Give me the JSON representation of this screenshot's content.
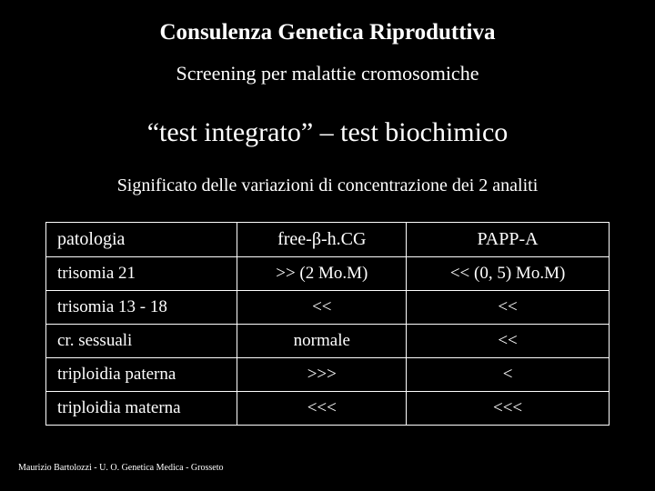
{
  "title": {
    "text": "Consulenza Genetica Riproduttiva",
    "fontsize": 25
  },
  "subtitle1": {
    "text": "Screening per malattie cromosomiche",
    "fontsize": 22
  },
  "subtitle2": {
    "text": "“test integrato” – test  biochimico",
    "fontsize": 30
  },
  "subtitle3": {
    "text": "Significato delle variazioni di concentrazione dei 2 analiti",
    "fontsize": 20
  },
  "table": {
    "columns": [
      "patologia",
      "free-β-h.CG",
      "PAPP-A"
    ],
    "col_widths": [
      "34%",
      "30%",
      "36%"
    ],
    "header_fontsize": 20,
    "cell_fontsize": 19,
    "border_color": "#ffffff",
    "rows": [
      [
        "trisomia 21",
        ">> (2 Mo.M)",
        "<< (0, 5) Mo.M)"
      ],
      [
        "trisomia 13 - 18",
        "<<",
        "<<"
      ],
      [
        "cr. sessuali",
        "normale",
        "<<"
      ],
      [
        "triploidia paterna",
        ">>>",
        "<"
      ],
      [
        "triploidia materna",
        "<<<",
        "<<<"
      ]
    ]
  },
  "footer": {
    "text": "Maurizio Bartolozzi - U. O. Genetica Medica - Grosseto",
    "fontsize": 10
  },
  "colors": {
    "background": "#000000",
    "text": "#ffffff"
  }
}
